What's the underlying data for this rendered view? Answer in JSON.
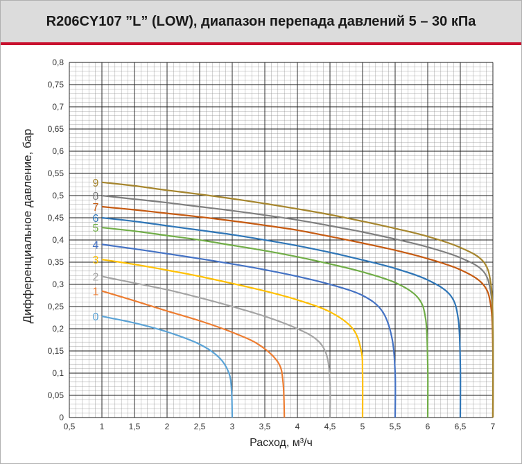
{
  "title": "R206CY107 ”L” (LOW), диапазон перепада давлений 5 – 30 кПа",
  "colors": {
    "title_bg": "#dcdcdc",
    "title_rule": "#c8102e",
    "grid": "#1a1a1a"
  },
  "chart_data": {
    "type": "line",
    "xlabel": "Расход, м³/ч",
    "ylabel": "Дифференциальное давление, бар",
    "xlim": [
      0.5,
      7
    ],
    "ylim": [
      0,
      0.8
    ],
    "x_ticks": [
      "0,5",
      "1",
      "1,5",
      "2",
      "2,5",
      "3",
      "3,5",
      "4",
      "4,5",
      "5",
      "5,5",
      "6",
      "6,5",
      "7"
    ],
    "y_ticks": [
      "0",
      "0,05",
      "0,1",
      "0,15",
      "0,2",
      "0,25",
      "0,3",
      "0,35",
      "0,4",
      "0,45",
      "0,5",
      "0,55",
      "0,6",
      "0,65",
      "0,7",
      "0,75",
      "0,8"
    ],
    "grid": true,
    "series": [
      {
        "name": "0",
        "color": "#5ba3d6",
        "points": [
          [
            1,
            0.228
          ],
          [
            1.5,
            0.213
          ],
          [
            2,
            0.193
          ],
          [
            2.5,
            0.165
          ],
          [
            2.8,
            0.135
          ],
          [
            2.95,
            0.1
          ],
          [
            2.99,
            0.06
          ],
          [
            3.0,
            0
          ]
        ]
      },
      {
        "name": "1",
        "color": "#ed7d31",
        "points": [
          [
            1,
            0.285
          ],
          [
            1.5,
            0.263
          ],
          [
            2,
            0.24
          ],
          [
            2.5,
            0.218
          ],
          [
            3,
            0.192
          ],
          [
            3.4,
            0.165
          ],
          [
            3.7,
            0.125
          ],
          [
            3.78,
            0.08
          ],
          [
            3.8,
            0
          ]
        ]
      },
      {
        "name": "2",
        "color": "#a5a5a5",
        "points": [
          [
            1,
            0.318
          ],
          [
            1.5,
            0.303
          ],
          [
            2,
            0.288
          ],
          [
            2.5,
            0.27
          ],
          [
            3,
            0.25
          ],
          [
            3.5,
            0.228
          ],
          [
            4,
            0.2
          ],
          [
            4.3,
            0.175
          ],
          [
            4.45,
            0.14
          ],
          [
            4.5,
            0.08
          ],
          [
            4.5,
            0
          ]
        ]
      },
      {
        "name": "3",
        "color": "#ffc000",
        "points": [
          [
            1,
            0.356
          ],
          [
            1.5,
            0.345
          ],
          [
            2,
            0.332
          ],
          [
            2.5,
            0.318
          ],
          [
            3,
            0.302
          ],
          [
            3.5,
            0.285
          ],
          [
            4,
            0.265
          ],
          [
            4.5,
            0.238
          ],
          [
            4.85,
            0.2
          ],
          [
            4.98,
            0.15
          ],
          [
            5.0,
            0.1
          ],
          [
            5.0,
            0
          ]
        ]
      },
      {
        "name": "4",
        "color": "#4472c4",
        "points": [
          [
            1,
            0.39
          ],
          [
            1.5,
            0.38
          ],
          [
            2,
            0.369
          ],
          [
            2.5,
            0.358
          ],
          [
            3,
            0.346
          ],
          [
            3.5,
            0.333
          ],
          [
            4,
            0.318
          ],
          [
            4.5,
            0.3
          ],
          [
            5,
            0.275
          ],
          [
            5.3,
            0.24
          ],
          [
            5.45,
            0.18
          ],
          [
            5.5,
            0.1
          ],
          [
            5.5,
            0
          ]
        ]
      },
      {
        "name": "5",
        "color": "#70ad47",
        "points": [
          [
            1,
            0.428
          ],
          [
            1.5,
            0.42
          ],
          [
            2,
            0.41
          ],
          [
            2.5,
            0.4
          ],
          [
            3,
            0.388
          ],
          [
            3.5,
            0.376
          ],
          [
            4,
            0.362
          ],
          [
            4.5,
            0.346
          ],
          [
            5,
            0.328
          ],
          [
            5.5,
            0.304
          ],
          [
            5.85,
            0.27
          ],
          [
            5.97,
            0.22
          ],
          [
            6.0,
            0.12
          ],
          [
            6.0,
            0
          ]
        ]
      },
      {
        "name": "6",
        "color": "#2e75b6",
        "points": [
          [
            1,
            0.45
          ],
          [
            1.5,
            0.442
          ],
          [
            2,
            0.432
          ],
          [
            2.5,
            0.422
          ],
          [
            3,
            0.412
          ],
          [
            3.5,
            0.4
          ],
          [
            4,
            0.387
          ],
          [
            4.5,
            0.372
          ],
          [
            5,
            0.355
          ],
          [
            5.5,
            0.336
          ],
          [
            6,
            0.31
          ],
          [
            6.35,
            0.275
          ],
          [
            6.47,
            0.22
          ],
          [
            6.5,
            0.12
          ],
          [
            6.5,
            0
          ]
        ]
      },
      {
        "name": "7",
        "color": "#c55a11",
        "points": [
          [
            1,
            0.475
          ],
          [
            1.5,
            0.468
          ],
          [
            2,
            0.46
          ],
          [
            2.5,
            0.452
          ],
          [
            3,
            0.443
          ],
          [
            3.5,
            0.433
          ],
          [
            4,
            0.422
          ],
          [
            4.5,
            0.408
          ],
          [
            5,
            0.393
          ],
          [
            5.5,
            0.377
          ],
          [
            6,
            0.358
          ],
          [
            6.5,
            0.333
          ],
          [
            6.85,
            0.3
          ],
          [
            6.97,
            0.25
          ],
          [
            7.0,
            0.15
          ],
          [
            7.0,
            0
          ]
        ]
      },
      {
        "name": "8",
        "color": "#7f7f7f",
        "points": [
          [
            1,
            0.5
          ],
          [
            1.5,
            0.492
          ],
          [
            2,
            0.484
          ],
          [
            2.5,
            0.475
          ],
          [
            3,
            0.466
          ],
          [
            3.5,
            0.456
          ],
          [
            4,
            0.445
          ],
          [
            4.5,
            0.432
          ],
          [
            5,
            0.418
          ],
          [
            5.5,
            0.402
          ],
          [
            6,
            0.384
          ],
          [
            6.5,
            0.36
          ],
          [
            6.85,
            0.33
          ],
          [
            6.97,
            0.28
          ],
          [
            7.0,
            0.2
          ],
          [
            7.0,
            0
          ]
        ]
      },
      {
        "name": "9",
        "color": "#a6862e",
        "points": [
          [
            1,
            0.53
          ],
          [
            1.5,
            0.522
          ],
          [
            2,
            0.512
          ],
          [
            2.5,
            0.503
          ],
          [
            3,
            0.493
          ],
          [
            3.5,
            0.482
          ],
          [
            4,
            0.47
          ],
          [
            4.5,
            0.457
          ],
          [
            5,
            0.442
          ],
          [
            5.5,
            0.426
          ],
          [
            6,
            0.408
          ],
          [
            6.5,
            0.383
          ],
          [
            6.85,
            0.352
          ],
          [
            6.97,
            0.3
          ],
          [
            7.0,
            0.2
          ],
          [
            7.0,
            0
          ]
        ]
      }
    ]
  }
}
